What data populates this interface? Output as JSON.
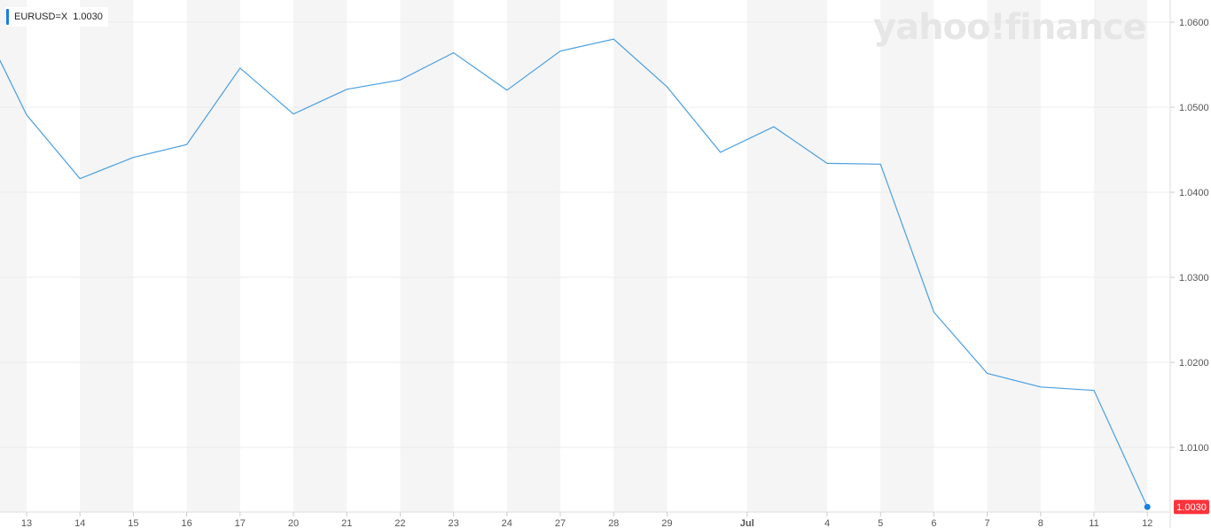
{
  "legend": {
    "symbol": "EURUSD=X",
    "value": "1.0030"
  },
  "watermark": "yahoo!finance",
  "colors": {
    "line": "#4a9fe0",
    "last_dot": "#1a7fe0",
    "last_badge": "#ff333a",
    "band": "#f5f5f5"
  },
  "chart_data": {
    "type": "line",
    "title": "",
    "xlabel": "",
    "ylabel": "",
    "ylim": [
      1.0027,
      1.0626
    ],
    "grid": true,
    "y_ticks": [
      "1.0100",
      "1.0200",
      "1.0300",
      "1.0400",
      "1.0500",
      "1.0600"
    ],
    "x_tick_labels": [
      "13",
      "14",
      "15",
      "16",
      "17",
      "20",
      "21",
      "22",
      "23",
      "24",
      "27",
      "28",
      "29",
      "Jul",
      "4",
      "5",
      "6",
      "7",
      "8",
      "11",
      "12"
    ],
    "last_value_label": "1.0030",
    "series": [
      {
        "x": [
          "2022-06-10",
          "2022-06-13",
          "2022-06-14",
          "2022-06-15",
          "2022-06-16",
          "2022-06-17",
          "2022-06-20",
          "2022-06-21",
          "2022-06-22",
          "2022-06-23",
          "2022-06-24",
          "2022-06-27",
          "2022-06-28",
          "2022-06-29",
          "2022-06-30",
          "2022-07-01",
          "2022-07-04",
          "2022-07-05",
          "2022-07-06",
          "2022-07-07",
          "2022-07-08",
          "2022-07-11",
          "2022-07-12"
        ],
        "values": [
          1.0619,
          1.0491,
          1.0416,
          1.0441,
          1.0456,
          1.0546,
          1.0492,
          1.0521,
          1.0532,
          1.0564,
          1.052,
          1.0566,
          1.058,
          1.0524,
          1.0447,
          1.0477,
          1.0434,
          1.0433,
          1.0259,
          1.0187,
          1.0171,
          1.0167,
          1.003
        ]
      }
    ]
  }
}
